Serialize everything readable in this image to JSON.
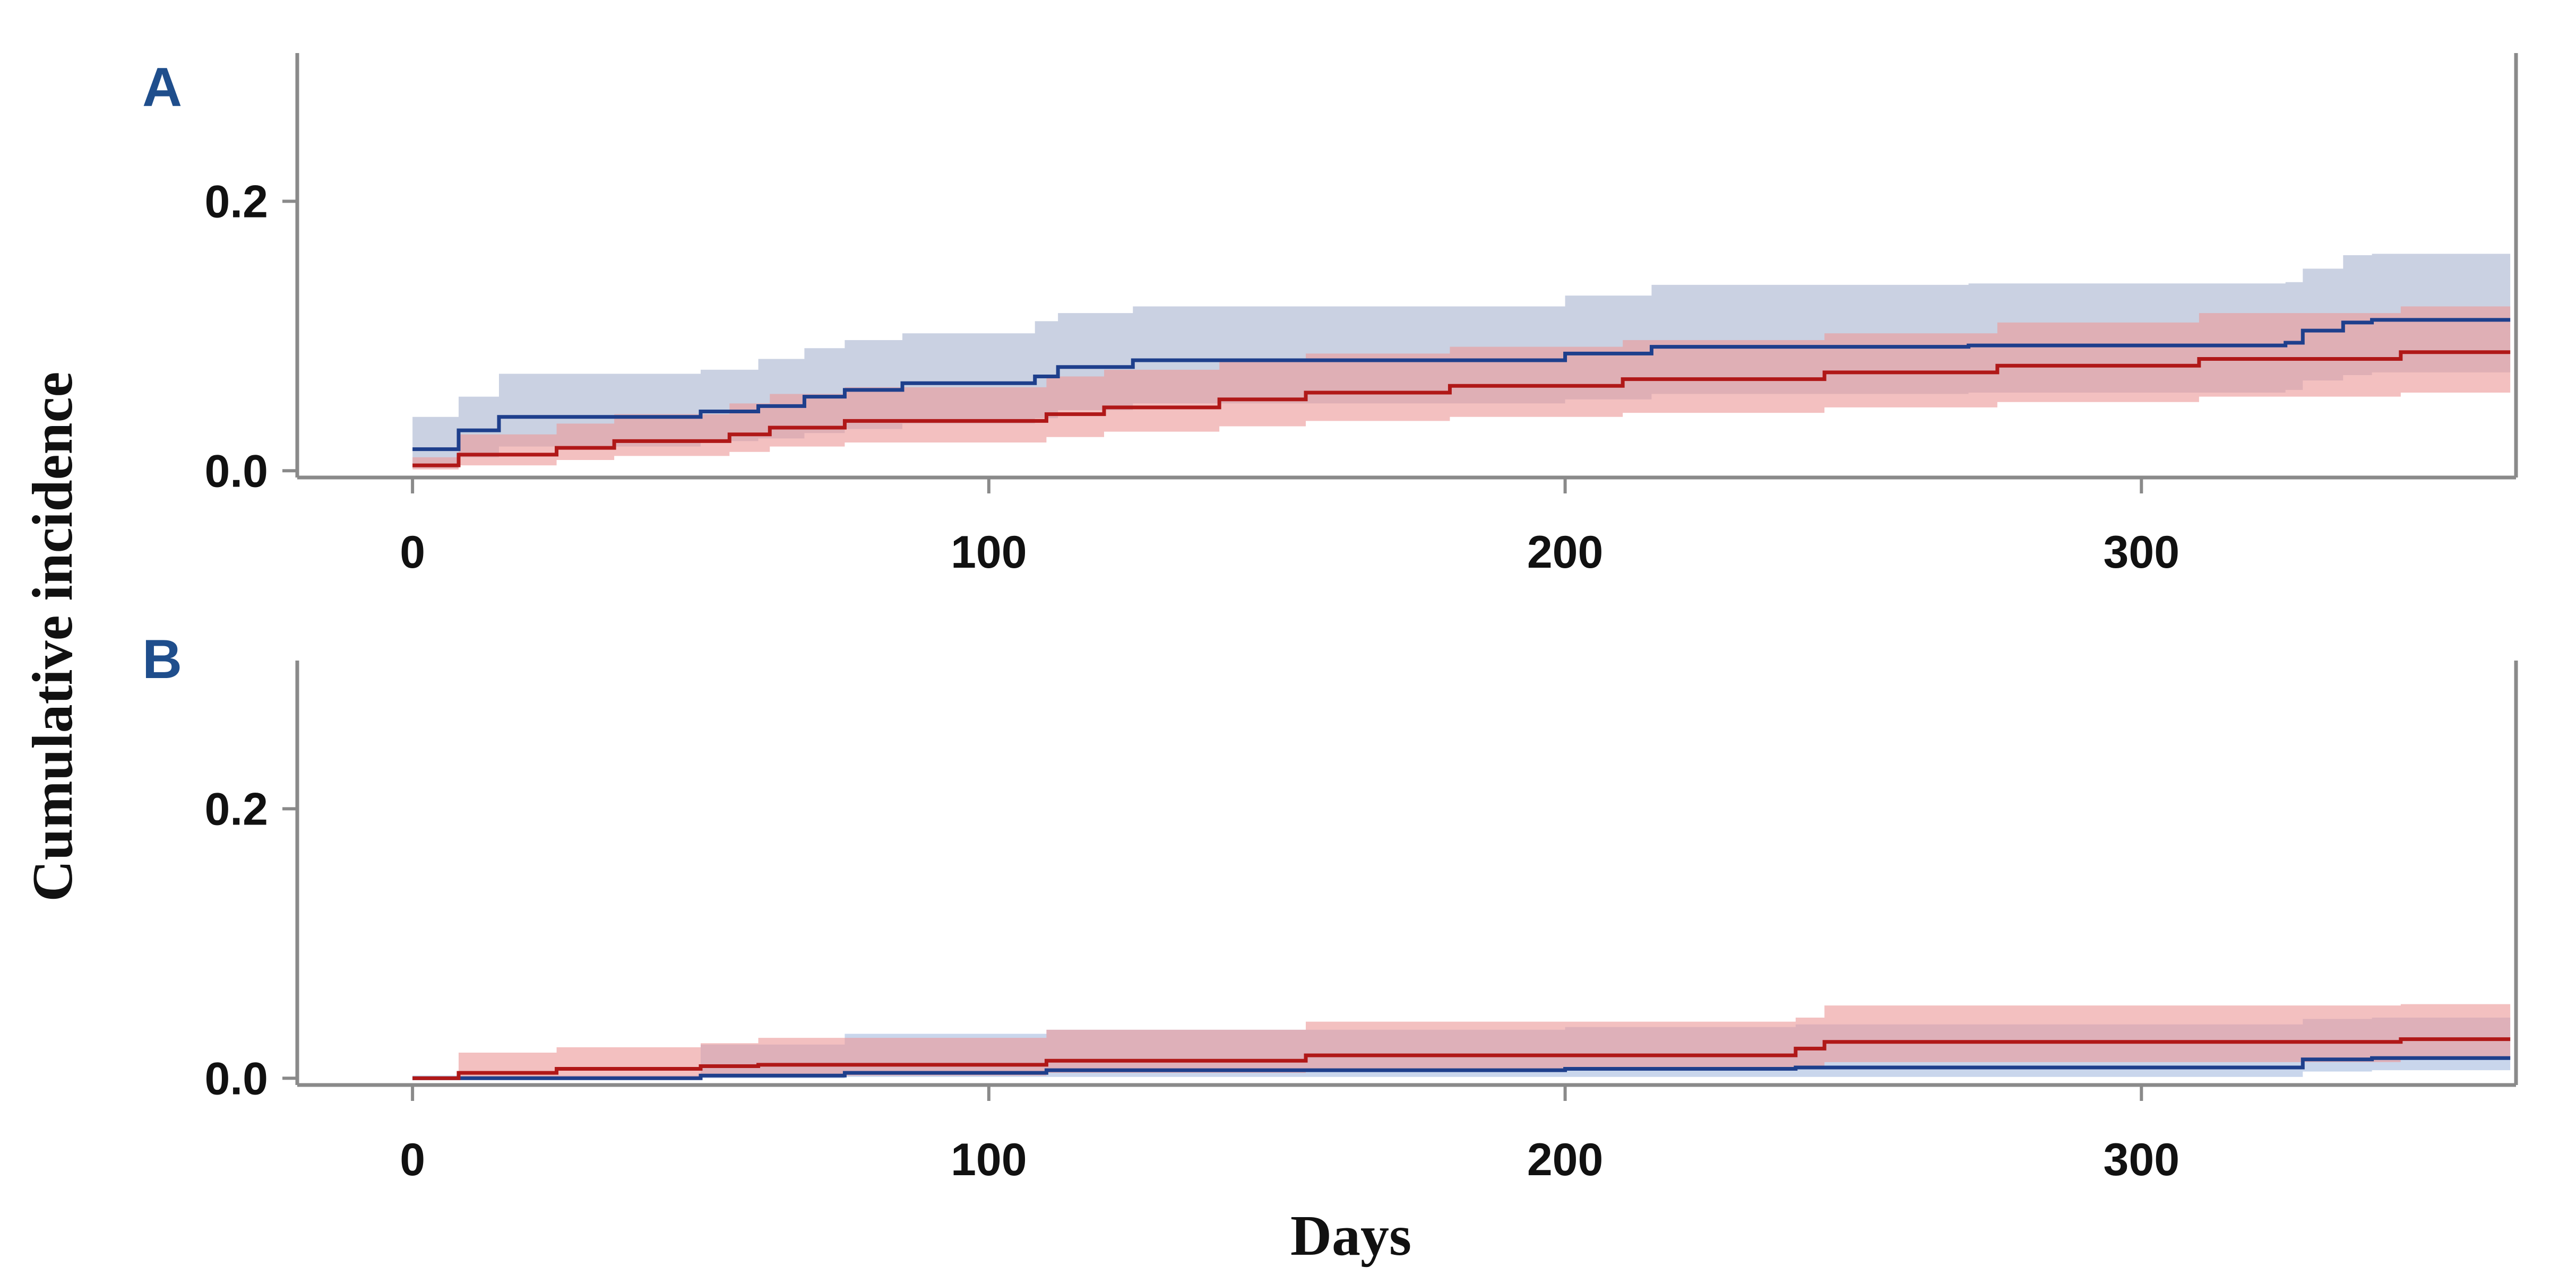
{
  "chart_data": [
    {
      "type": "line",
      "panel_label": "A",
      "ylabel": "Cumulative incidence",
      "xlabel": "",
      "xlim": [
        -20,
        365
      ],
      "ylim": [
        -0.005,
        0.31
      ],
      "x_ticks": [
        0,
        100,
        200,
        300
      ],
      "x_tick_labels": [
        "0",
        "100",
        "200",
        "300"
      ],
      "y_ticks": [
        0,
        0.2
      ],
      "y_tick_labels": [
        "0.0",
        "0.2"
      ],
      "grid": false,
      "legend": "none",
      "series": [
        {
          "color": "#1e3f8c",
          "band_color": "#aab4d0",
          "step": [
            [
              0,
              0.016
            ],
            [
              8,
              0.03
            ],
            [
              15,
              0.04
            ],
            [
              50,
              0.044
            ],
            [
              60,
              0.048
            ],
            [
              68,
              0.055
            ],
            [
              75,
              0.06
            ],
            [
              85,
              0.065
            ],
            [
              108,
              0.07
            ],
            [
              112,
              0.077
            ],
            [
              125,
              0.082
            ],
            [
              200,
              0.087
            ],
            [
              215,
              0.092
            ],
            [
              270,
              0.093
            ],
            [
              325,
              0.095
            ],
            [
              328,
              0.104
            ],
            [
              335,
              0.11
            ],
            [
              340,
              0.112
            ]
          ],
          "upper": [
            [
              0,
              0.04
            ],
            [
              8,
              0.055
            ],
            [
              15,
              0.072
            ],
            [
              50,
              0.075
            ],
            [
              60,
              0.083
            ],
            [
              68,
              0.091
            ],
            [
              75,
              0.097
            ],
            [
              85,
              0.102
            ],
            [
              108,
              0.111
            ],
            [
              112,
              0.117
            ],
            [
              125,
              0.122
            ],
            [
              200,
              0.13
            ],
            [
              215,
              0.138
            ],
            [
              270,
              0.139
            ],
            [
              325,
              0.14
            ],
            [
              328,
              0.15
            ],
            [
              335,
              0.16
            ],
            [
              340,
              0.161
            ]
          ],
          "lower": [
            [
              0,
              0.002
            ],
            [
              8,
              0.01
            ],
            [
              15,
              0.018
            ],
            [
              50,
              0.022
            ],
            [
              60,
              0.024
            ],
            [
              68,
              0.028
            ],
            [
              75,
              0.031
            ],
            [
              85,
              0.035
            ],
            [
              108,
              0.039
            ],
            [
              112,
              0.045
            ],
            [
              125,
              0.05
            ],
            [
              200,
              0.053
            ],
            [
              215,
              0.057
            ],
            [
              270,
              0.058
            ],
            [
              325,
              0.06
            ],
            [
              328,
              0.067
            ],
            [
              335,
              0.071
            ],
            [
              340,
              0.073
            ]
          ]
        },
        {
          "color": "#b01818",
          "band_color": "#ec9a9a",
          "step": [
            [
              0,
              0.004
            ],
            [
              8,
              0.012
            ],
            [
              25,
              0.017
            ],
            [
              35,
              0.022
            ],
            [
              55,
              0.027
            ],
            [
              62,
              0.032
            ],
            [
              75,
              0.037
            ],
            [
              110,
              0.042
            ],
            [
              120,
              0.047
            ],
            [
              140,
              0.053
            ],
            [
              155,
              0.058
            ],
            [
              180,
              0.063
            ],
            [
              210,
              0.068
            ],
            [
              245,
              0.073
            ],
            [
              275,
              0.078
            ],
            [
              310,
              0.083
            ],
            [
              345,
              0.088
            ]
          ],
          "upper": [
            [
              0,
              0.01
            ],
            [
              8,
              0.027
            ],
            [
              25,
              0.035
            ],
            [
              35,
              0.042
            ],
            [
              55,
              0.05
            ],
            [
              62,
              0.057
            ],
            [
              75,
              0.062
            ],
            [
              110,
              0.07
            ],
            [
              120,
              0.075
            ],
            [
              140,
              0.082
            ],
            [
              155,
              0.087
            ],
            [
              180,
              0.092
            ],
            [
              210,
              0.097
            ],
            [
              245,
              0.102
            ],
            [
              275,
              0.11
            ],
            [
              310,
              0.117
            ],
            [
              345,
              0.122
            ]
          ],
          "lower": [
            [
              0,
              0.001
            ],
            [
              8,
              0.004
            ],
            [
              25,
              0.008
            ],
            [
              35,
              0.011
            ],
            [
              55,
              0.014
            ],
            [
              62,
              0.018
            ],
            [
              75,
              0.021
            ],
            [
              110,
              0.025
            ],
            [
              120,
              0.029
            ],
            [
              140,
              0.033
            ],
            [
              155,
              0.037
            ],
            [
              180,
              0.04
            ],
            [
              210,
              0.043
            ],
            [
              245,
              0.047
            ],
            [
              275,
              0.051
            ],
            [
              310,
              0.055
            ],
            [
              345,
              0.058
            ]
          ]
        }
      ]
    },
    {
      "type": "line",
      "panel_label": "B",
      "ylabel": "Cumulative incidence",
      "xlabel": "Days",
      "xlim": [
        -20,
        365
      ],
      "ylim": [
        -0.005,
        0.31
      ],
      "x_ticks": [
        0,
        100,
        200,
        300
      ],
      "x_tick_labels": [
        "0",
        "100",
        "200",
        "300"
      ],
      "y_ticks": [
        0,
        0.2
      ],
      "y_tick_labels": [
        "0.0",
        "0.2"
      ],
      "grid": false,
      "legend": "none",
      "series": [
        {
          "color": "#1e3f8c",
          "band_color": "#a8bde0",
          "step": [
            [
              0,
              0.0
            ],
            [
              50,
              0.002
            ],
            [
              75,
              0.004
            ],
            [
              110,
              0.006
            ],
            [
              200,
              0.007
            ],
            [
              240,
              0.008
            ],
            [
              328,
              0.014
            ],
            [
              340,
              0.015
            ]
          ],
          "upper": [
            [
              0,
              0.002
            ],
            [
              50,
              0.025
            ],
            [
              75,
              0.033
            ],
            [
              110,
              0.036
            ],
            [
              200,
              0.038
            ],
            [
              240,
              0.04
            ],
            [
              328,
              0.044
            ],
            [
              340,
              0.045
            ]
          ],
          "lower": [
            [
              0,
              0.0
            ],
            [
              50,
              0.0
            ],
            [
              75,
              0.001
            ],
            [
              110,
              0.001
            ],
            [
              200,
              0.001
            ],
            [
              240,
              0.001
            ],
            [
              328,
              0.005
            ],
            [
              340,
              0.006
            ]
          ]
        },
        {
          "color": "#b01818",
          "band_color": "#ec9a9a",
          "step": [
            [
              0,
              0.0
            ],
            [
              8,
              0.004
            ],
            [
              25,
              0.007
            ],
            [
              50,
              0.009
            ],
            [
              60,
              0.01
            ],
            [
              110,
              0.013
            ],
            [
              155,
              0.017
            ],
            [
              240,
              0.022
            ],
            [
              245,
              0.027
            ],
            [
              345,
              0.029
            ]
          ],
          "upper": [
            [
              0,
              0.001
            ],
            [
              8,
              0.019
            ],
            [
              25,
              0.023
            ],
            [
              50,
              0.026
            ],
            [
              60,
              0.03
            ],
            [
              110,
              0.036
            ],
            [
              155,
              0.042
            ],
            [
              240,
              0.045
            ],
            [
              245,
              0.054
            ],
            [
              345,
              0.055
            ]
          ],
          "lower": [
            [
              0,
              0.0
            ],
            [
              8,
              0.0
            ],
            [
              25,
              0.001
            ],
            [
              50,
              0.002
            ],
            [
              60,
              0.002
            ],
            [
              110,
              0.004
            ],
            [
              155,
              0.006
            ],
            [
              240,
              0.009
            ],
            [
              245,
              0.012
            ],
            [
              345,
              0.014
            ]
          ]
        }
      ]
    }
  ]
}
